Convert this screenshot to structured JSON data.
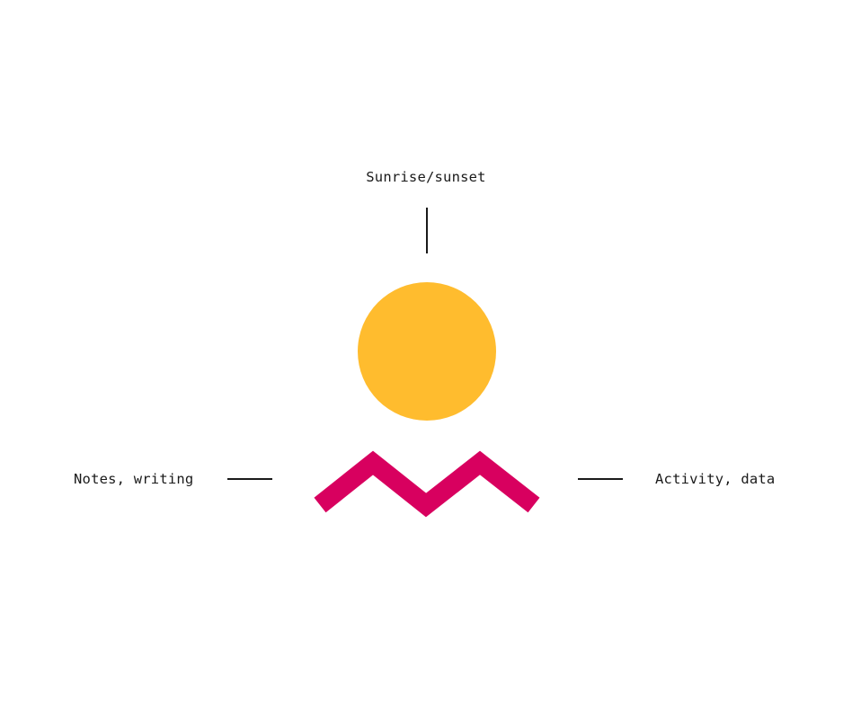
{
  "labels": {
    "top": "Sunrise/sunset",
    "left": "Notes, writing",
    "right": "Activity, data"
  },
  "colors": {
    "sun": "#FFBC2E",
    "zigzag": "#D8005F",
    "line": "#1A1A1A",
    "background": "#FFFFFF"
  },
  "icons": {
    "sun": "sun-circle-icon",
    "zigzag": "zigzag-wave-icon"
  }
}
